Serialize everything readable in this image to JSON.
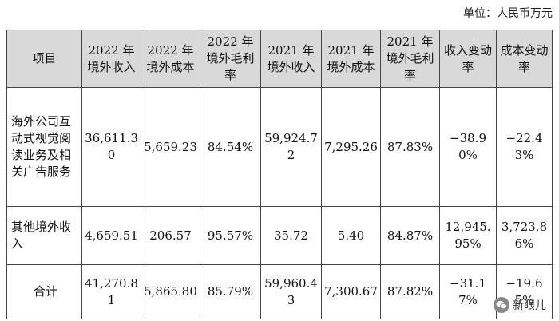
{
  "unit_label": "单位：人民币万元",
  "headers": [
    "项目",
    "2022 年境外收入",
    "2022 年境外成本",
    "2022 年境外毛利率",
    "2021 年境外收入",
    "2021 年境外成本",
    "2021 年境外毛利率",
    "收入变动率",
    "成本变动率"
  ],
  "rows": [
    {
      "item": "海外公司互动式视觉阅读业务及相关广告服务",
      "cells": [
        "36,611.30",
        "5,659.23",
        "84.54%",
        "59,924.72",
        "7,295.26",
        "87.83%",
        "−38.90%",
        "−22.43%"
      ]
    },
    {
      "item": "其他境外收入",
      "cells": [
        "4,659.51",
        "206.57",
        "95.57%",
        "35.72",
        "5.40",
        "84.87%",
        "12,945.95%",
        "3,723.86%"
      ]
    },
    {
      "item": "合计",
      "cells": [
        "41,270.81",
        "5,865.80",
        "85.79%",
        "59,960.43",
        "7,300.67",
        "87.82%",
        "−31.17%",
        "−19.65%"
      ]
    }
  ],
  "watermark": {
    "icon": "wechat-icon",
    "text": "新眼儿"
  }
}
